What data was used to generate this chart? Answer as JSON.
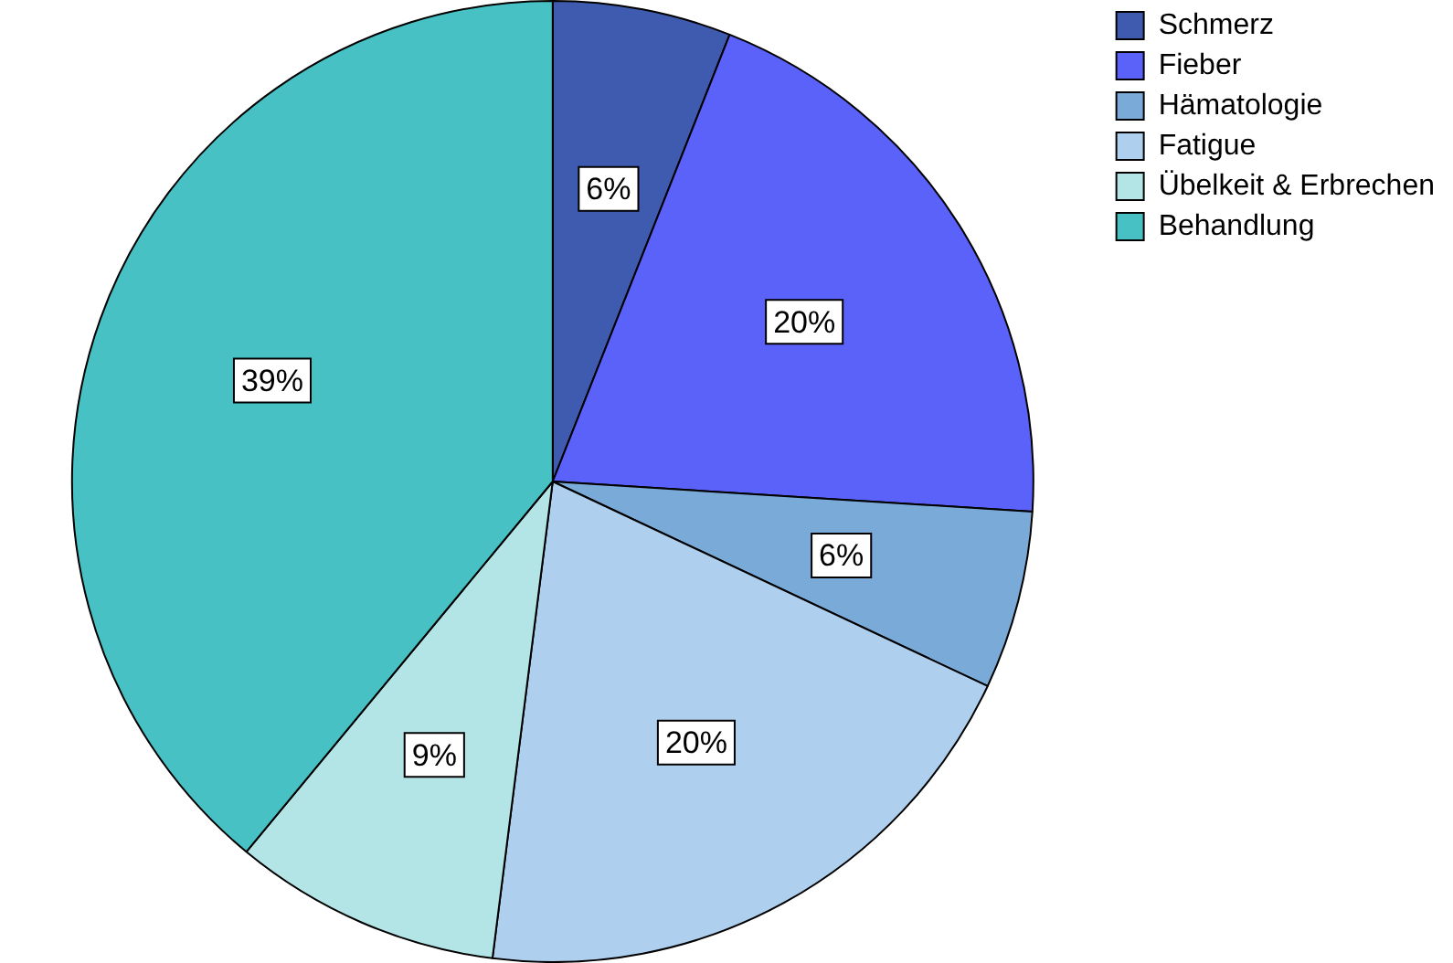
{
  "chart_data": {
    "type": "pie",
    "categories": [
      "Schmerz",
      "Fieber",
      "Hämatologie",
      "Fatigue",
      "Übelkeit & Erbrechen",
      "Behandlung"
    ],
    "values": [
      6,
      20,
      6,
      20,
      9,
      39
    ],
    "colors": [
      "#3f5bb0",
      "#5a62fa",
      "#7aaad8",
      "#aecfee",
      "#b3e4e6",
      "#48c1c5"
    ],
    "value_labels": [
      "6%",
      "20%",
      "6%",
      "20%",
      "9%",
      "39%"
    ],
    "legend": "top right"
  }
}
